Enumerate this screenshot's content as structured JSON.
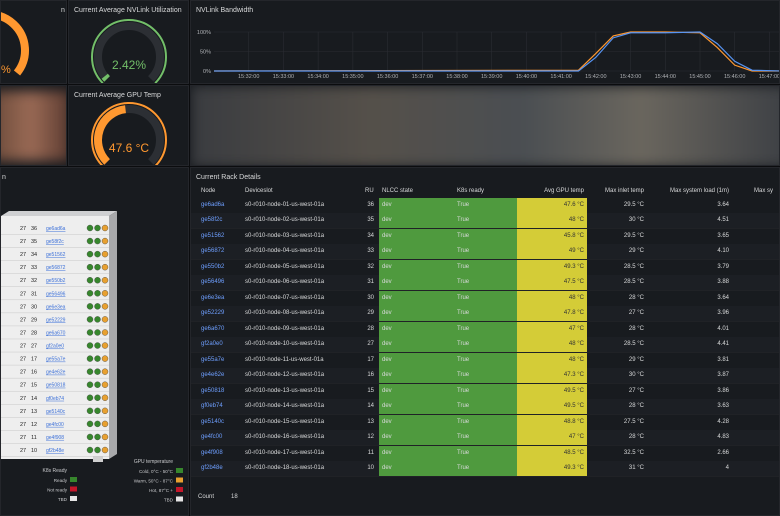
{
  "panels": {
    "top_left": {
      "title": "n",
      "value_label": "%"
    },
    "nvlink_util": {
      "title": "Current Average NVLink Utilization",
      "value": 2.42,
      "value_label": "2.42%",
      "range": [
        0,
        100
      ]
    },
    "gpu_temp": {
      "title": "Current Average GPU Temp",
      "value": 47.6,
      "value_label": "47.6 °C",
      "range": [
        0,
        100
      ]
    },
    "rack": {
      "title": "n",
      "rows": [
        [
          27,
          36,
          "ge6ad6a"
        ],
        [
          27,
          35,
          "ge58f2c"
        ],
        [
          27,
          34,
          "ge51562"
        ],
        [
          27,
          33,
          "ge56872"
        ],
        [
          27,
          32,
          "ge550b2"
        ],
        [
          27,
          31,
          "ge56496"
        ],
        [
          27,
          30,
          "ge6e3ea"
        ],
        [
          27,
          29,
          "ge52229"
        ],
        [
          27,
          28,
          "ge6a670"
        ],
        [
          27,
          27,
          "gf2a0e0"
        ],
        [
          27,
          17,
          "ge55a7e"
        ],
        [
          27,
          16,
          "ge4e62e"
        ],
        [
          27,
          15,
          "ge50818"
        ],
        [
          27,
          14,
          "gf0eb74"
        ],
        [
          27,
          13,
          "ge5140c"
        ],
        [
          27,
          12,
          "ge4fc00"
        ],
        [
          27,
          11,
          "ge4f908"
        ],
        [
          27,
          10,
          "gf2b48e"
        ]
      ],
      "k8s_legend": {
        "title": "K8s Ready",
        "items": [
          {
            "label": "Ready",
            "color": "#37872d"
          },
          {
            "label": "Not ready",
            "color": "#c4162a"
          },
          {
            "label": "TBD",
            "color": "#e6e6e6"
          }
        ]
      },
      "temp_legend": {
        "title": "GPU temperature",
        "items": [
          {
            "label": "Cold, 0°C - 50°C",
            "color": "#37872d"
          },
          {
            "label": "Warm, 50°C - 87°C",
            "color": "#e8a030"
          },
          {
            "label": "Hot, 87°C +",
            "color": "#c4162a"
          },
          {
            "label": "TBD",
            "color": "#e6e6e6"
          }
        ]
      }
    }
  },
  "chart_data": {
    "type": "line",
    "title": "NVLink Bandwidth",
    "x": [
      "15:31:00",
      "15:41:30",
      "15:42:00",
      "15:42:30",
      "15:43:00",
      "15:44:00",
      "15:45:00",
      "15:45:30",
      "15:46:00",
      "15:46:30",
      "15:47:20"
    ],
    "series": [
      {
        "name": "",
        "color": "#ff9830",
        "values": [
          0,
          2,
          45,
          90,
          100,
          100,
          98,
          60,
          15,
          0,
          0
        ]
      },
      {
        "name": "",
        "color": "#5794f2",
        "values": [
          0,
          0,
          35,
          85,
          98,
          98,
          100,
          70,
          25,
          2,
          0
        ]
      }
    ],
    "xlim": [
      "15:31:00",
      "15:47:20"
    ],
    "xticks": [
      "15:32:00",
      "15:33:00",
      "15:34:00",
      "15:35:00",
      "15:36:00",
      "15:37:00",
      "15:38:00",
      "15:39:00",
      "15:40:00",
      "15:41:00",
      "15:42:00",
      "15:43:00",
      "15:44:00",
      "15:45:00",
      "15:46:00",
      "15:47:00"
    ],
    "ylim": [
      0,
      100
    ],
    "yticks": [
      {
        "value": 0,
        "label": "0%"
      },
      {
        "value": 50,
        "label": "50%"
      },
      {
        "value": 100,
        "label": "100%"
      }
    ],
    "grid": true
  },
  "table": {
    "title": "Current Rack Details",
    "columns": [
      "Node",
      "Deviceslot",
      "RU",
      "NLCC state",
      "K8s ready",
      "Avg GPU temp",
      "Max inlet temp",
      "Max system load (1m)",
      "Max sy"
    ],
    "rows": [
      [
        "ge6ad6a",
        "s0-r010-node-01-us-west-01a",
        36,
        "dev",
        "True",
        "47.6 °C",
        "29.5 °C",
        "3.64"
      ],
      [
        "ge58f2c",
        "s0-r010-node-02-us-west-01a",
        35,
        "dev",
        "True",
        "48 °C",
        "30 °C",
        "4.51"
      ],
      [
        "ge51562",
        "s0-r010-node-03-us-west-01a",
        34,
        "dev",
        "True",
        "45.8 °C",
        "29.5 °C",
        "3.65"
      ],
      [
        "ge56872",
        "s0-r010-node-04-us-west-01a",
        33,
        "dev",
        "True",
        "49 °C",
        "29 °C",
        "4.10"
      ],
      [
        "ge550b2",
        "s0-r010-node-05-us-west-01a",
        32,
        "dev",
        "True",
        "49.3 °C",
        "28.5 °C",
        "3.79"
      ],
      [
        "ge56496",
        "s0-r010-node-06-us-west-01a",
        31,
        "dev",
        "True",
        "47.5 °C",
        "28.5 °C",
        "3.88"
      ],
      [
        "ge6e3ea",
        "s0-r010-node-07-us-west-01a",
        30,
        "dev",
        "True",
        "48 °C",
        "28 °C",
        "3.64"
      ],
      [
        "ge52229",
        "s0-r010-node-08-us-west-01a",
        29,
        "dev",
        "True",
        "47.8 °C",
        "27 °C",
        "3.96"
      ],
      [
        "ge6a670",
        "s0-r010-node-09-us-west-01a",
        28,
        "dev",
        "True",
        "47 °C",
        "28 °C",
        "4.01"
      ],
      [
        "gf2a0e0",
        "s0-r010-node-10-us-west-01a",
        27,
        "dev",
        "True",
        "48 °C",
        "28.5 °C",
        "4.41"
      ],
      [
        "ge55a7e",
        "s0-r010-node-11-us-west-01a",
        17,
        "dev",
        "True",
        "48 °C",
        "29 °C",
        "3.81"
      ],
      [
        "ge4e62e",
        "s0-r010-node-12-us-west-01a",
        16,
        "dev",
        "True",
        "47.3 °C",
        "30 °C",
        "3.87"
      ],
      [
        "ge50818",
        "s0-r010-node-13-us-west-01a",
        15,
        "dev",
        "True",
        "49.5 °C",
        "27 °C",
        "3.86"
      ],
      [
        "gf0eb74",
        "s0-r010-node-14-us-west-01a",
        14,
        "dev",
        "True",
        "49.5 °C",
        "28 °C",
        "3.63"
      ],
      [
        "ge5140c",
        "s0-r010-node-15-us-west-01a",
        13,
        "dev",
        "True",
        "48.8 °C",
        "27.5 °C",
        "4.28"
      ],
      [
        "ge4fc00",
        "s0-r010-node-16-us-west-01a",
        12,
        "dev",
        "True",
        "47 °C",
        "28 °C",
        "4.83"
      ],
      [
        "ge4f908",
        "s0-r010-node-17-us-west-01a",
        11,
        "dev",
        "True",
        "48.5 °C",
        "32.5 °C",
        "2.66"
      ],
      [
        "gf2b48e",
        "s0-r010-node-18-us-west-01a",
        10,
        "dev",
        "True",
        "49.3 °C",
        "31 °C",
        "4"
      ]
    ],
    "footer": {
      "label": "Count",
      "value": 18
    }
  }
}
